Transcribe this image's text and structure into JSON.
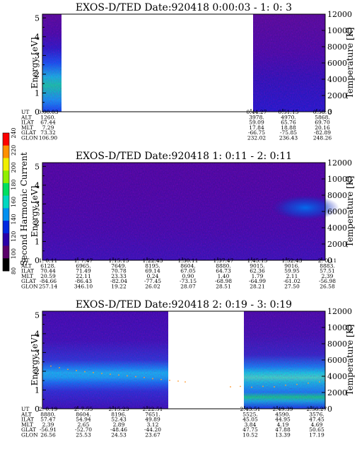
{
  "chart_data": [
    {
      "type": "heatmap",
      "title": "EXOS-D/TED   Date:920418  0:00:03 - 1: 0: 3",
      "ylabel": "Energy [eV]",
      "y2label": "Temperature [K]",
      "ylim": [
        0,
        5.2
      ],
      "yticks": [
        0,
        1,
        2,
        3,
        4,
        5
      ],
      "y2lim": [
        0,
        12000
      ],
      "y2ticks": [
        0,
        2000,
        4000,
        6000,
        8000,
        10000,
        12000
      ],
      "data_intervals": [
        [
          "0:00:03",
          "0:03:00"
        ],
        [
          "0:44:27",
          "1:00:03"
        ]
      ],
      "temperature_trace": [],
      "ephemeris": {
        "labels": [
          "UT",
          "ALT",
          "ILAT",
          "MLT",
          "GLAT",
          "GLON"
        ],
        "columns": [
          {
            "UT": "0:00:03",
            "ALT": "1260.",
            "ILAT": "67.44",
            "MLT": "7.29",
            "GLAT": "73.32",
            "GLON": "106.90"
          },
          {
            "UT": "0:44:27",
            "ALT": "3978.",
            "ILAT": "59.09",
            "MLT": "17.84",
            "GLAT": "-66.75",
            "GLON": "232.02"
          },
          {
            "UT": "0:51:15",
            "ALT": "4970.",
            "ILAT": "65.76",
            "MLT": "18.88",
            "GLAT": "-75.85",
            "GLON": "236.43"
          },
          {
            "UT": "0:58: 3",
            "ALT": "5868.",
            "ILAT": "69.70",
            "MLT": "20.16",
            "GLAT": "-82.89",
            "GLON": "248.26"
          }
        ]
      }
    },
    {
      "type": "heatmap",
      "title": "EXOS-D/TED   Date:920418  1: 0:11 - 2: 0:11",
      "ylabel": "Energy [eV]",
      "y2label": "Temperature [K]",
      "ylim": [
        0,
        5.2
      ],
      "yticks": [
        0,
        1,
        2,
        3,
        4,
        5
      ],
      "y2lim": [
        0,
        12000
      ],
      "y2ticks": [
        0,
        2000,
        4000,
        6000,
        8000,
        10000,
        12000
      ],
      "data_intervals": [
        [
          "1:00:11",
          "2:00:11"
        ]
      ],
      "temperature_trace": [],
      "ephemeris": {
        "labels": [
          "UT",
          "ALT",
          "ILAT",
          "MLT",
          "GLAT",
          "GLON"
        ],
        "columns": [
          {
            "UT": "1: 0:11",
            "ALT": "6128.",
            "ILAT": "70.44",
            "MLT": "20.59",
            "GLAT": "-84.66",
            "GLON": "257.14"
          },
          {
            "UT": "1: 7:47",
            "ALT": "6965.",
            "ILAT": "71.49",
            "MLT": "22.11",
            "GLAT": "-86.43",
            "GLON": "346.10"
          },
          {
            "UT": "1:15:15",
            "ALT": "7649.",
            "ILAT": "70.78",
            "MLT": "23.33",
            "GLAT": "-82.04",
            "GLON": "19.22"
          },
          {
            "UT": "1:22:43",
            "ALT": "8195.",
            "ILAT": "69.14",
            "MLT": "0.24",
            "GLAT": "-77.45",
            "GLON": "26.02"
          },
          {
            "UT": "1:30:11",
            "ALT": "8604.",
            "ILAT": "67.05",
            "MLT": "0.90",
            "GLAT": "-73.15",
            "GLON": "28.07"
          },
          {
            "UT": "1:37:47",
            "ALT": "8880.",
            "ILAT": "64.73",
            "MLT": "1.40",
            "GLAT": "-68.98",
            "GLON": "28.51"
          },
          {
            "UT": "1:45:15",
            "ALT": "9015.",
            "ILAT": "62.36",
            "MLT": "1.79",
            "GLAT": "-64.99",
            "GLON": "28.21"
          },
          {
            "UT": "1:52:43",
            "ALT": "9016.",
            "ILAT": "59.95",
            "MLT": "2.11",
            "GLAT": "-61.02",
            "GLON": "27.50"
          },
          {
            "UT": "2: 0:11",
            "ALT": "8883.",
            "ILAT": "57.51",
            "MLT": "2.39",
            "GLAT": "-56.98",
            "GLON": "26.58"
          }
        ]
      }
    },
    {
      "type": "heatmap",
      "title": "EXOS-D/TED   Date:920418  2: 0:19 - 3: 0:19",
      "ylabel": "Energy [eV]",
      "y2label": "Temperature [K]",
      "ylim": [
        0,
        5.2
      ],
      "yticks": [
        0,
        1,
        2,
        3,
        4,
        5
      ],
      "y2lim": [
        0,
        12000
      ],
      "y2ticks": [
        0,
        2000,
        4000,
        6000,
        8000,
        10000,
        12000
      ],
      "data_intervals": [
        [
          "2:00:19",
          "2:30:50"
        ],
        [
          "2:40:05",
          "3:00:19"
        ]
      ],
      "temperature_trace": [
        [
          0.0,
          5400
        ],
        [
          0.03,
          5250
        ],
        [
          0.06,
          5050
        ],
        [
          0.09,
          4850
        ],
        [
          0.12,
          4700
        ],
        [
          0.15,
          4550
        ],
        [
          0.18,
          4450
        ],
        [
          0.21,
          4350
        ],
        [
          0.24,
          4250
        ],
        [
          0.27,
          4150
        ],
        [
          0.3,
          4050
        ],
        [
          0.33,
          3950
        ],
        [
          0.36,
          3850
        ],
        [
          0.39,
          3700
        ],
        [
          0.42,
          3600
        ],
        [
          0.45,
          3500
        ],
        [
          0.48,
          3400
        ],
        [
          0.505,
          3300
        ],
        [
          0.665,
          2700
        ],
        [
          0.7,
          2750
        ],
        [
          0.74,
          2650
        ],
        [
          0.78,
          2750
        ],
        [
          0.82,
          2700
        ],
        [
          0.86,
          2900
        ],
        [
          0.9,
          3000
        ],
        [
          0.94,
          3150
        ],
        [
          0.98,
          3300
        ],
        [
          1.0,
          3450
        ]
      ],
      "ephemeris": {
        "labels": [
          "UT",
          "ALT",
          "ILAT",
          "MLT",
          "GLAT",
          "GLON"
        ],
        "columns": [
          {
            "UT": "2: 0:19",
            "ALT": "8880.",
            "ILAT": "57.47",
            "MLT": "2.39",
            "GLAT": "-56.91",
            "GLON": "26.56"
          },
          {
            "UT": "2: 7:55",
            "ALT": "8604.",
            "ILAT": "54.94",
            "MLT": "2.65",
            "GLAT": "-52.70",
            "GLON": "25.53"
          },
          {
            "UT": "2:15:23",
            "ALT": "8196.",
            "ILAT": "52.43",
            "MLT": "2.89",
            "GLAT": "-48.46",
            "GLON": "24.53"
          },
          {
            "UT": "2:22:51",
            "ALT": "7651.",
            "ILAT": "49.89",
            "MLT": "3.12",
            "GLAT": "-44.20",
            "GLON": "23.67"
          },
          {
            "UT": "2:43:51",
            "ALT": "5525.",
            "ILAT": "45.05",
            "MLT": "3.84",
            "GLAT": "47.75",
            "GLON": "10.52"
          },
          {
            "UT": "2:49:39",
            "ALT": "4590.",
            "ILAT": "44.95",
            "MLT": "4.19",
            "GLAT": "47.88",
            "GLON": "13.39"
          },
          {
            "UT": "2:56:27",
            "ALT": "3576.",
            "ILAT": "47.45",
            "MLT": "4.69",
            "GLAT": "50.65",
            "GLON": "17.19"
          }
        ]
      }
    }
  ],
  "colorbar": {
    "label": "Second Harmonic Current",
    "ticks": [
      80,
      100,
      120,
      140,
      160,
      180,
      200,
      220,
      240
    ],
    "colors": [
      "#000000",
      "#5a006a",
      "#2a00a8",
      "#0028e0",
      "#0090f0",
      "#00d8c0",
      "#00e060",
      "#90f000",
      "#f0f000",
      "#ff9000",
      "#ff0000"
    ]
  }
}
